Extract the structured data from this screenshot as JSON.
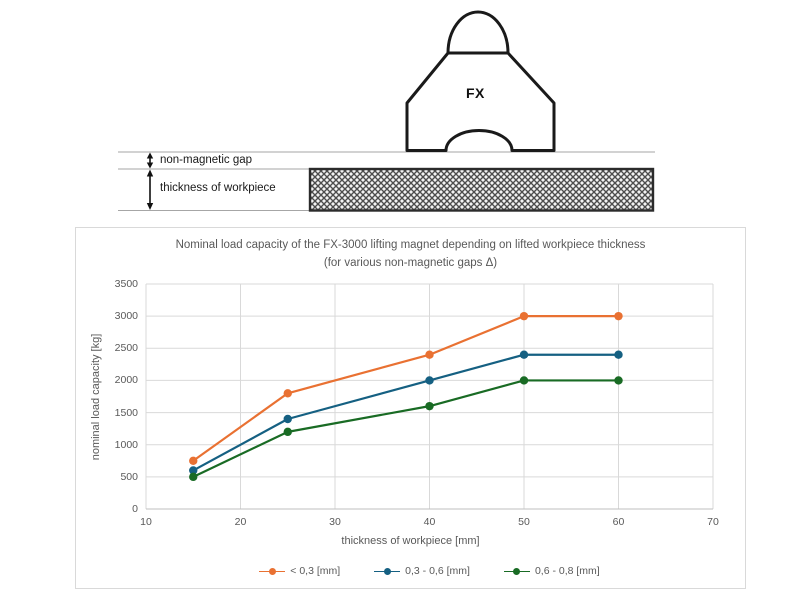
{
  "diagram": {
    "magnet_label": "FX",
    "gap_label": "non-magnetic gap",
    "thickness_label": "thickness of workpiece"
  },
  "chart_data": {
    "type": "line",
    "title": "Nominal load capacity of the FX-3000 lifting magnet depending on lifted workpiece thickness",
    "subtitle": "(for various non-magnetic gaps Δ)",
    "xlabel": "thickness of workpiece [mm]",
    "ylabel": "nominal load capacity [kg]",
    "xlim": [
      10,
      70
    ],
    "ylim": [
      0,
      3500
    ],
    "x_ticks": [
      10,
      20,
      30,
      40,
      50,
      60,
      70
    ],
    "y_ticks": [
      0,
      500,
      1000,
      1500,
      2000,
      2500,
      3000,
      3500
    ],
    "grid": true,
    "legend_position": "bottom",
    "series": [
      {
        "name": "< 0,3 [mm]",
        "color": "#E97132",
        "points": [
          [
            15,
            750
          ],
          [
            25,
            1800
          ],
          [
            40,
            2400
          ],
          [
            50,
            3000
          ],
          [
            60,
            3000
          ]
        ]
      },
      {
        "name": "0,3 - 0,6 [mm]",
        "color": "#156082",
        "points": [
          [
            15,
            600
          ],
          [
            25,
            1400
          ],
          [
            40,
            2000
          ],
          [
            50,
            2400
          ],
          [
            60,
            2400
          ]
        ]
      },
      {
        "name": "0,6 - 0,8 [mm]",
        "color": "#196B24",
        "points": [
          [
            15,
            500
          ],
          [
            25,
            1200
          ],
          [
            40,
            1600
          ],
          [
            50,
            2000
          ],
          [
            60,
            2000
          ]
        ]
      }
    ]
  },
  "colors": {
    "gridline": "#d9d9d9",
    "axis_line": "#bfbfbf",
    "text": "#595959",
    "diagram_line": "#a6a6a6",
    "outline": "#1a1a1a"
  }
}
